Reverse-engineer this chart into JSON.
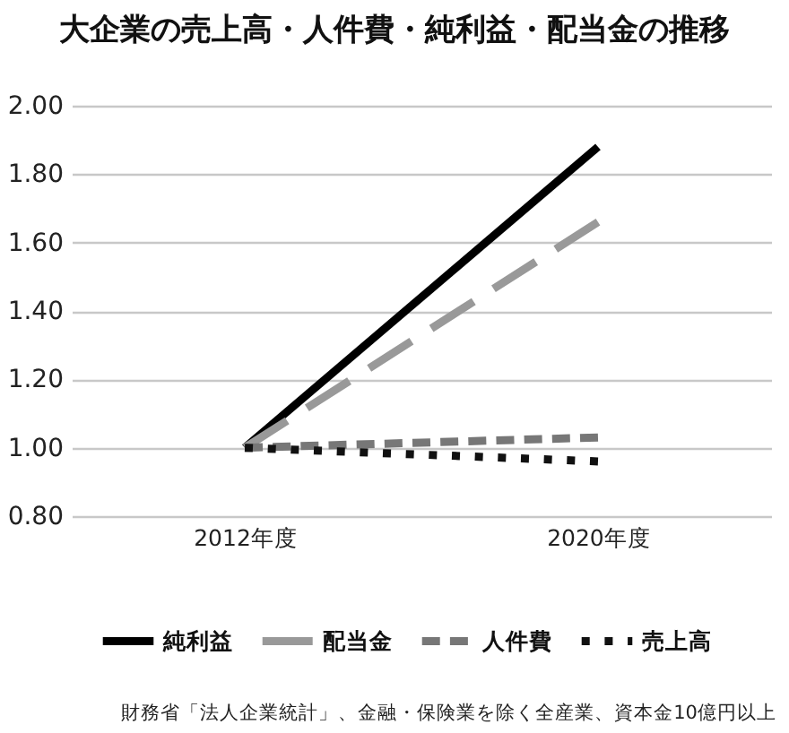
{
  "chart_data": {
    "type": "line",
    "title": "大企業の売上高・人件費・純利益・配当金の推移",
    "categories": [
      "2012年度",
      "2020年度"
    ],
    "series": [
      {
        "name": "純利益",
        "color": "#000000",
        "values": [
          1.0,
          1.88
        ],
        "line_style": "solid"
      },
      {
        "name": "配当金",
        "color": "#999999",
        "values": [
          1.0,
          1.66
        ],
        "line_style": "dashed"
      },
      {
        "name": "人件費",
        "color": "#777777",
        "values": [
          1.0,
          1.03
        ],
        "line_style": "dashed"
      },
      {
        "name": "売上高",
        "color": "#111111",
        "values": [
          1.0,
          0.96
        ],
        "line_style": "dotted"
      }
    ],
    "ylim": [
      0.8,
      2.0
    ],
    "yticks": [
      {
        "value": 0.8,
        "label": "0.80"
      },
      {
        "value": 1.0,
        "label": "1.00"
      },
      {
        "value": 1.2,
        "label": "1.20"
      },
      {
        "value": 1.4,
        "label": "1.40"
      },
      {
        "value": 1.6,
        "label": "1.60"
      },
      {
        "value": 1.8,
        "label": "1.80"
      },
      {
        "value": 2.0,
        "label": "2.00"
      }
    ],
    "grid": "y",
    "legend": "bottom",
    "annotations": [
      "財務省「法人企業統計」、金融・保険業を除く全産業、資本金10億円以上"
    ]
  }
}
